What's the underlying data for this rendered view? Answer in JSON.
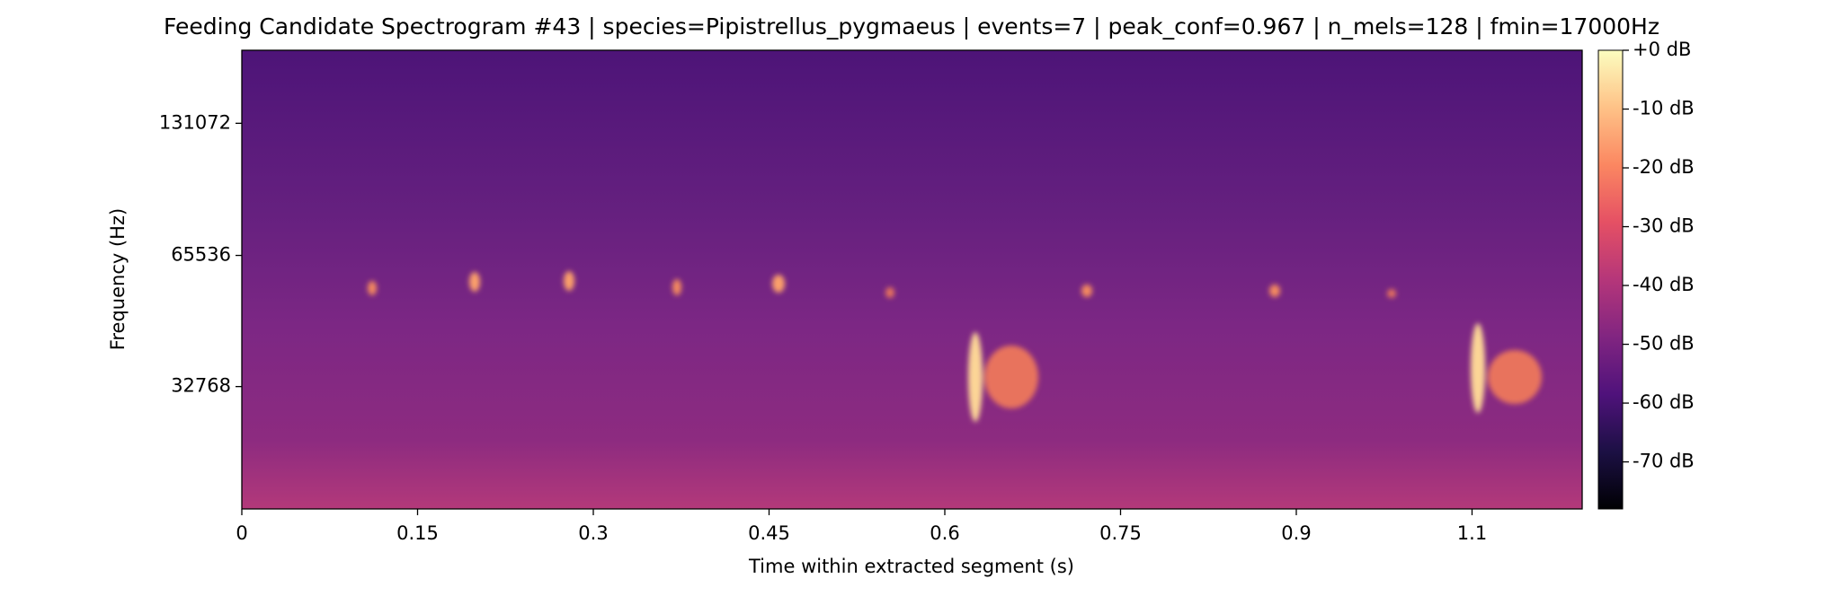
{
  "chart_data": {
    "type": "spectrogram",
    "title": "Feeding Candidate Spectrogram #43 | species=Pipistrellus_pygmaeus | events=7 | peak_conf=0.967 | n_mels=128 | fmin=17000Hz",
    "x_label": "Time within extracted segment (s)",
    "y_label": "Frequency (Hz)",
    "xlim": [
      0,
      1.144
    ],
    "xticks": [
      0,
      0.15,
      0.3,
      0.45,
      0.6,
      0.75,
      0.9,
      {
        "value": 1.05,
        "label": "1.1"
      }
    ],
    "ylim": [
      17000,
      192000
    ],
    "yscale": "mel",
    "yticks": [
      32768,
      65536,
      131072
    ],
    "colormap": "magma",
    "clim": [
      -78,
      0
    ],
    "cticks": [
      {
        "value": 0,
        "label": "+0 dB"
      },
      {
        "value": -10,
        "label": "-10 dB"
      },
      {
        "value": -20,
        "label": "-20 dB"
      },
      {
        "value": -30,
        "label": "-30 dB"
      },
      {
        "value": -40,
        "label": "-40 dB"
      },
      {
        "value": -50,
        "label": "-50 dB"
      },
      {
        "value": -60,
        "label": "-60 dB"
      },
      {
        "value": -70,
        "label": "-70 dB"
      }
    ]
  }
}
